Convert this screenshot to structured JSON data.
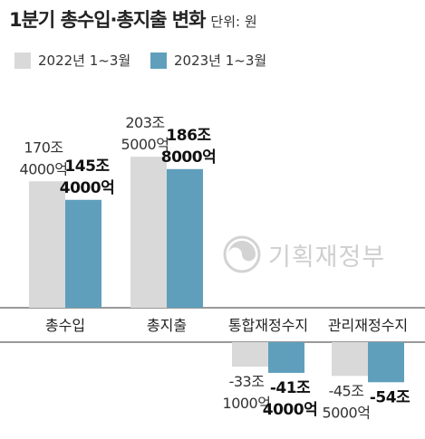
{
  "chart_data": {
    "type": "bar",
    "title": "1분기 총수입·총지출 변화",
    "unit_label": "단위: 원",
    "categories": [
      "총수입",
      "총지출",
      "통합재정수지",
      "관리재정수지"
    ],
    "series": [
      {
        "name": "2022년 1~3월",
        "color": "#d9d9d9",
        "values": [
          170.4,
          203.5,
          -33.1,
          -45.5
        ],
        "labels": [
          [
            "170조",
            "4000억"
          ],
          [
            "203조",
            "5000억"
          ],
          [
            "-33조",
            "1000억"
          ],
          [
            "-45조",
            "5000억"
          ]
        ]
      },
      {
        "name": "2023년 1~3월",
        "color": "#5f9fbc",
        "values": [
          145.4,
          186.8,
          -41.4,
          -54.0
        ],
        "labels": [
          [
            "145조",
            "4000억"
          ],
          [
            "186조",
            "8000억"
          ],
          [
            "-41조",
            "4000억"
          ],
          [
            "-54조"
          ]
        ]
      }
    ],
    "ylabel": "",
    "xlabel": "",
    "grid": false,
    "legend": "top-left"
  },
  "watermark": {
    "text": "기획재정부",
    "icon": "government-emblem-icon"
  }
}
